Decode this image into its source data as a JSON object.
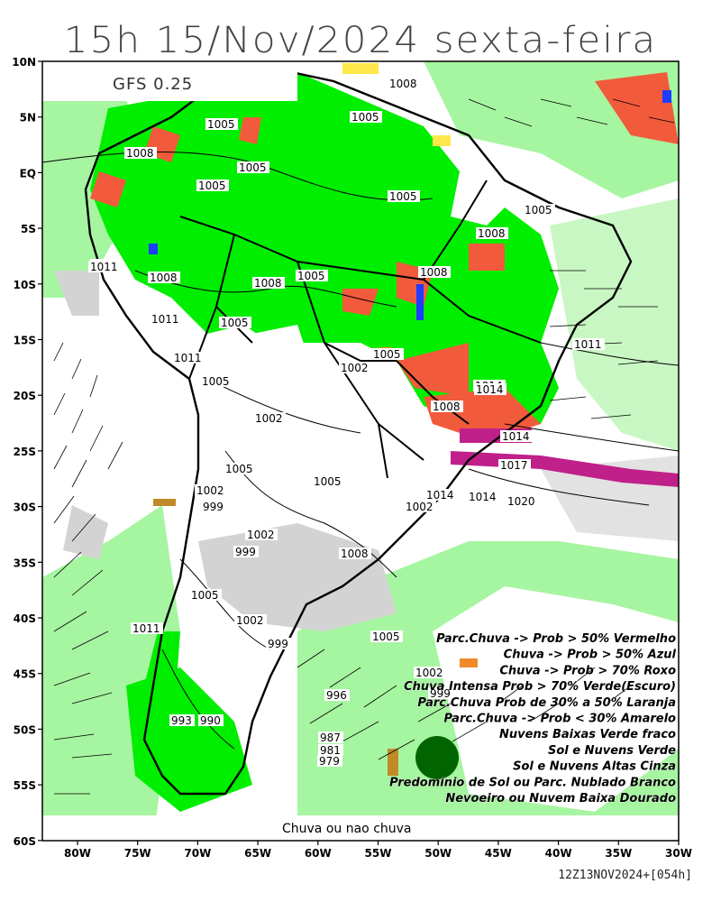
{
  "title": "15h 15/Nov/2024 sexta-feira",
  "model_label": "GFS 0.25",
  "bottom_label": "Chuva ou nao chuva",
  "footer": "12Z13NOV2024+[054h]",
  "lat_labels": [
    "10N",
    "5N",
    "EQ",
    "5S",
    "10S",
    "15S",
    "20S",
    "25S",
    "30S",
    "35S",
    "40S",
    "45S",
    "50S",
    "55S",
    "60S"
  ],
  "lon_labels": [
    "80W",
    "75W",
    "70W",
    "65W",
    "60W",
    "55W",
    "50W",
    "45W",
    "40W",
    "35W",
    "30W"
  ],
  "legend": [
    "Parc.Chuva -> Prob > 50% Vermelho",
    "Chuva -> Prob > 50% Azul",
    "Chuva -> Prob > 70% Roxo",
    "Chuva Intensa Prob > 70% Verde(Escuro)",
    "Parc.Chuva Prob de 30% a 50% Laranja",
    "Parc.Chuva -> Prob < 30% Amarelo",
    "Nuvens Baixas Verde fraco",
    "Sol e Nuvens Verde",
    "Sol e Nuvens Altas Cinza",
    "Predominio de Sol ou Parc. Nublado Branco",
    "Nevoeiro ou Nuvem Baixa Dourado"
  ],
  "isobars": [
    "1008",
    "1005",
    "1005",
    "1008",
    "1005",
    "1005",
    "1005",
    "1005",
    "1008",
    "1008",
    "1011",
    "1005",
    "1005",
    "1011",
    "1011",
    "1005",
    "1005",
    "1011",
    "1008",
    "1008",
    "1005",
    "1014",
    "1002",
    "1008",
    "1002",
    "1014",
    "1014",
    "1017",
    "1005",
    "1005",
    "1002",
    "999",
    "1014",
    "1020",
    "1002",
    "999",
    "1008",
    "1005",
    "1002",
    "999",
    "1005",
    "1002",
    "999",
    "996",
    "993",
    "990",
    "987",
    "981",
    "979",
    "1011",
    "1002",
    "1011",
    "1014"
  ],
  "colors": {
    "green": "#00ee00",
    "light_green": "#a6f5a0",
    "red": "#f25a3c",
    "blue": "#1f3cff",
    "purple": "#c0208a",
    "dark_green": "#006400",
    "orange": "#f08a28",
    "yellow": "#ffe84a",
    "gray": "#d3d3d3",
    "gold": "#c08a28"
  }
}
